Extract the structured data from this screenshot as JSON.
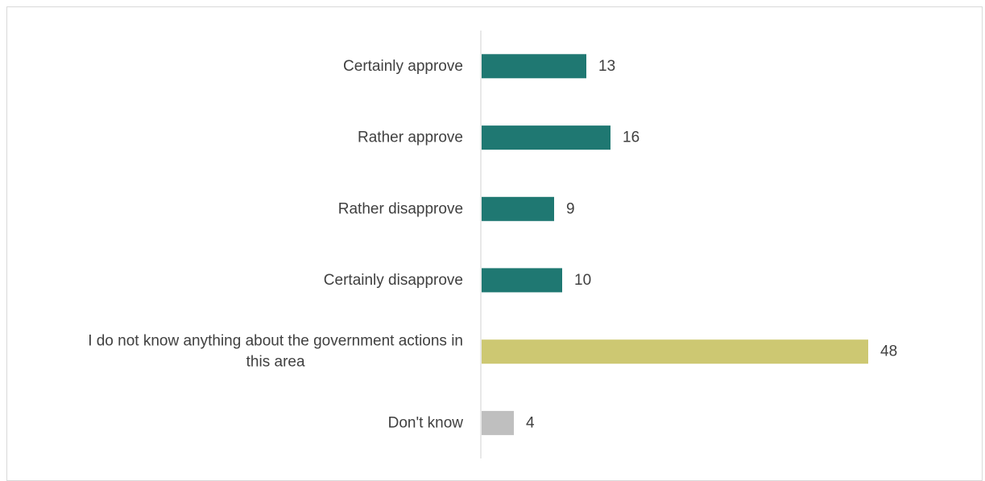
{
  "chart_data": {
    "type": "bar",
    "orientation": "horizontal",
    "categories": [
      "Certainly approve",
      "Rather approve",
      "Rather disapprove",
      "Certainly disapprove",
      "I do not know anything about the government actions in this area",
      "Don't know"
    ],
    "category_lines": [
      [
        "Certainly approve"
      ],
      [
        "Rather approve"
      ],
      [
        "Rather disapprove"
      ],
      [
        "Certainly disapprove"
      ],
      [
        "I do not know anything about the government actions in",
        "this area"
      ],
      [
        "Don't know"
      ]
    ],
    "values": [
      13,
      16,
      9,
      10,
      48,
      4
    ],
    "colors": [
      "#1f7872",
      "#1f7872",
      "#1f7872",
      "#1f7872",
      "#cdc872",
      "#bfbfbf"
    ],
    "xlim": [
      0,
      50
    ],
    "axis_color": "#d9d9d9",
    "grid": false,
    "legend": "none",
    "title": "",
    "xlabel": "",
    "ylabel": ""
  }
}
